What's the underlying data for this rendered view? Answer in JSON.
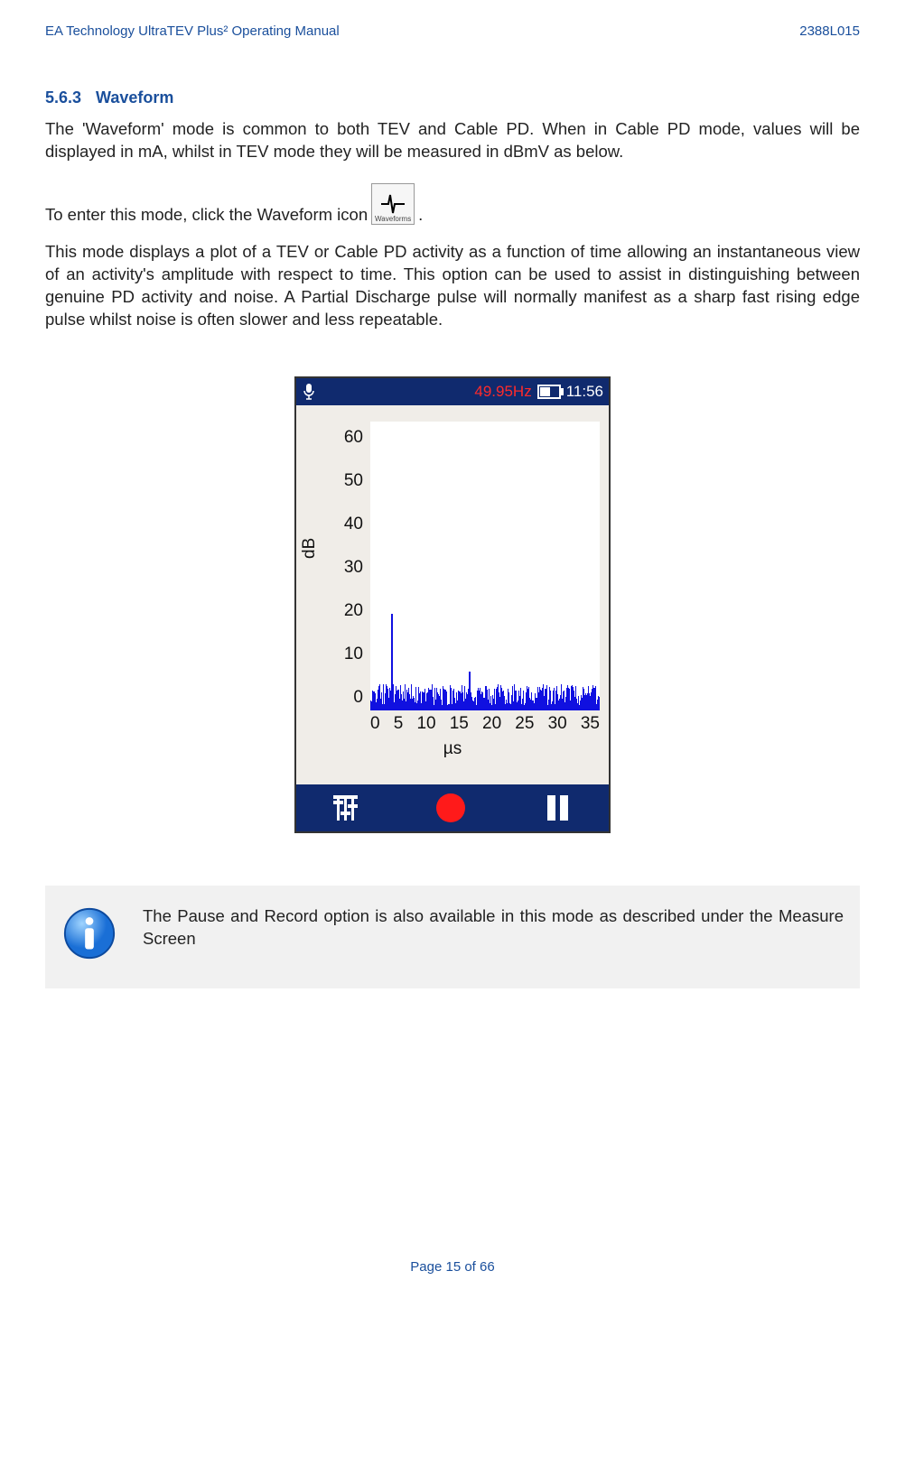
{
  "header": {
    "left": "EA Technology UltraTEV Plus² Operating Manual",
    "right": "2388L015"
  },
  "section": {
    "num": "5.6.3",
    "title": "Waveform"
  },
  "p1": "The 'Waveform' mode is common to both TEV and Cable PD. When in Cable PD mode, values will be displayed in mA, whilst in TEV mode they will be measured in dBmV as below.",
  "p2_pre": "To enter this mode, click the Waveform icon ",
  "icon_label": "Waveforms",
  "p2_post": ".",
  "p3": "This mode displays a plot of a TEV or Cable PD activity as a function of time allowing an instantaneous view of an activity's amplitude with respect to time. This option can be used to assist in distinguishing between genuine PD activity and noise. A Partial Discharge pulse will normally manifest as a sharp fast rising edge pulse whilst noise is often slower and less repeatable.",
  "device": {
    "freq": "49.95Hz",
    "time": "11:56",
    "battery_pct": 65,
    "chart": {
      "type": "waveform",
      "ylabel": "dB",
      "xlabel": "µs",
      "yticks": [
        "60",
        "50",
        "40",
        "30",
        "20",
        "10",
        "0"
      ],
      "xticks": [
        "0",
        "5",
        "10",
        "15",
        "20",
        "25",
        "30",
        "35"
      ],
      "xlim": [
        0,
        35
      ],
      "ylim": [
        0,
        60
      ],
      "background_color": "#ffffff",
      "series_color": "#1010e0",
      "noise_floor_db": 5,
      "spikes": [
        {
          "x_us": 3.2,
          "height_db": 20
        },
        {
          "x_us": 15.0,
          "height_db": 8
        }
      ],
      "tick_fontsize": 19,
      "label_fontsize": 19
    },
    "colors": {
      "bar_bg": "#102a6e",
      "plot_bg": "#f0ede8",
      "freq_color": "#ff2a2a",
      "record_color": "#ff1a1a"
    }
  },
  "info": "The Pause and Record option is also available in this mode as described under the Measure Screen",
  "footer": "Page 15 of 66"
}
